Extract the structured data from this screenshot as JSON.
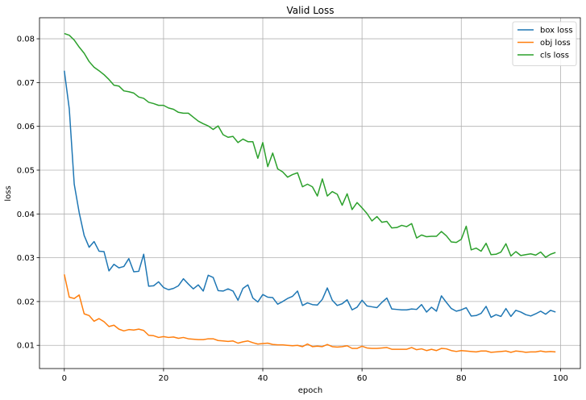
{
  "chart_data": {
    "type": "line",
    "title": "Valid Loss",
    "xlabel": "epoch",
    "ylabel": "loss",
    "xlim": [
      -5,
      104
    ],
    "ylim": [
      0.0047,
      0.0848
    ],
    "xticks": [
      0,
      20,
      40,
      60,
      80,
      100
    ],
    "yticks": [
      0.01,
      0.02,
      0.03,
      0.04,
      0.05,
      0.06,
      0.07,
      0.08
    ],
    "grid": true,
    "legend_position": "top-right",
    "series": [
      {
        "name": "box loss",
        "color": "#1f77b4",
        "values": [
          0.0727,
          0.064,
          0.0468,
          0.0403,
          0.0351,
          0.0324,
          0.0337,
          0.0315,
          0.0314,
          0.027,
          0.0285,
          0.0277,
          0.028,
          0.0298,
          0.0268,
          0.0269,
          0.0308,
          0.0235,
          0.0236,
          0.0245,
          0.0232,
          0.0227,
          0.023,
          0.0236,
          0.0252,
          0.024,
          0.0229,
          0.0238,
          0.0224,
          0.026,
          0.0255,
          0.0225,
          0.0224,
          0.0229,
          0.0224,
          0.0203,
          0.023,
          0.0238,
          0.0208,
          0.0199,
          0.0216,
          0.021,
          0.0209,
          0.0194,
          0.02,
          0.0207,
          0.0212,
          0.0224,
          0.0191,
          0.0197,
          0.0193,
          0.0192,
          0.0205,
          0.0231,
          0.0203,
          0.0191,
          0.0195,
          0.0204,
          0.0181,
          0.0187,
          0.0203,
          0.019,
          0.0188,
          0.0186,
          0.0198,
          0.0208,
          0.0183,
          0.0182,
          0.0181,
          0.0181,
          0.0183,
          0.0182,
          0.0193,
          0.0176,
          0.0187,
          0.0178,
          0.0213,
          0.0198,
          0.0184,
          0.0178,
          0.0181,
          0.0186,
          0.0167,
          0.0168,
          0.0173,
          0.0189,
          0.0164,
          0.017,
          0.0166,
          0.0184,
          0.0166,
          0.018,
          0.0176,
          0.017,
          0.0167,
          0.0172,
          0.0178,
          0.0171,
          0.018,
          0.0176
        ]
      },
      {
        "name": "obj loss",
        "color": "#ff7f0e",
        "values": [
          0.0262,
          0.021,
          0.0207,
          0.0215,
          0.0172,
          0.0168,
          0.0155,
          0.0161,
          0.0154,
          0.0143,
          0.0146,
          0.0137,
          0.0133,
          0.0136,
          0.0135,
          0.0137,
          0.0134,
          0.0123,
          0.0122,
          0.0118,
          0.012,
          0.0118,
          0.0119,
          0.0116,
          0.0118,
          0.0115,
          0.0114,
          0.0113,
          0.0113,
          0.0115,
          0.0115,
          0.0111,
          0.011,
          0.0109,
          0.011,
          0.0105,
          0.0108,
          0.011,
          0.0106,
          0.0103,
          0.0104,
          0.0105,
          0.0102,
          0.0101,
          0.0101,
          0.01,
          0.0099,
          0.01,
          0.0097,
          0.0103,
          0.0097,
          0.0098,
          0.0097,
          0.0102,
          0.0097,
          0.0096,
          0.0097,
          0.0099,
          0.0093,
          0.0093,
          0.0098,
          0.0094,
          0.0093,
          0.0093,
          0.0094,
          0.0095,
          0.0091,
          0.0091,
          0.0091,
          0.0091,
          0.0095,
          0.009,
          0.0092,
          0.0088,
          0.0091,
          0.0088,
          0.0093,
          0.0092,
          0.0088,
          0.0086,
          0.0088,
          0.0087,
          0.0086,
          0.0085,
          0.0087,
          0.0087,
          0.0084,
          0.0085,
          0.0086,
          0.0087,
          0.0084,
          0.0087,
          0.0086,
          0.0084,
          0.0085,
          0.0085,
          0.0087,
          0.0085,
          0.0086,
          0.0085
        ]
      },
      {
        "name": "cls loss",
        "color": "#2ca02c",
        "values": [
          0.0812,
          0.0808,
          0.0797,
          0.0781,
          0.0767,
          0.0748,
          0.0735,
          0.0727,
          0.0718,
          0.0707,
          0.0694,
          0.0692,
          0.0681,
          0.0679,
          0.0676,
          0.0667,
          0.0664,
          0.0655,
          0.0652,
          0.0648,
          0.0648,
          0.0642,
          0.0639,
          0.0632,
          0.063,
          0.063,
          0.0621,
          0.0612,
          0.0606,
          0.0601,
          0.0593,
          0.0601,
          0.0581,
          0.0575,
          0.0577,
          0.0563,
          0.0571,
          0.0565,
          0.0565,
          0.0527,
          0.0563,
          0.0508,
          0.0539,
          0.0503,
          0.0496,
          0.0484,
          0.049,
          0.0494,
          0.0462,
          0.0468,
          0.0462,
          0.0441,
          0.048,
          0.0441,
          0.0451,
          0.0445,
          0.042,
          0.0446,
          0.041,
          0.0426,
          0.0414,
          0.0401,
          0.0384,
          0.0394,
          0.0381,
          0.0383,
          0.0368,
          0.0369,
          0.0374,
          0.0371,
          0.0378,
          0.0345,
          0.0352,
          0.0348,
          0.0349,
          0.0349,
          0.036,
          0.035,
          0.0336,
          0.0335,
          0.0342,
          0.0372,
          0.0318,
          0.0322,
          0.0315,
          0.0333,
          0.0307,
          0.0308,
          0.0313,
          0.0332,
          0.0304,
          0.0314,
          0.0305,
          0.0307,
          0.0309,
          0.0306,
          0.0313,
          0.0301,
          0.0308,
          0.0312
        ]
      }
    ]
  }
}
